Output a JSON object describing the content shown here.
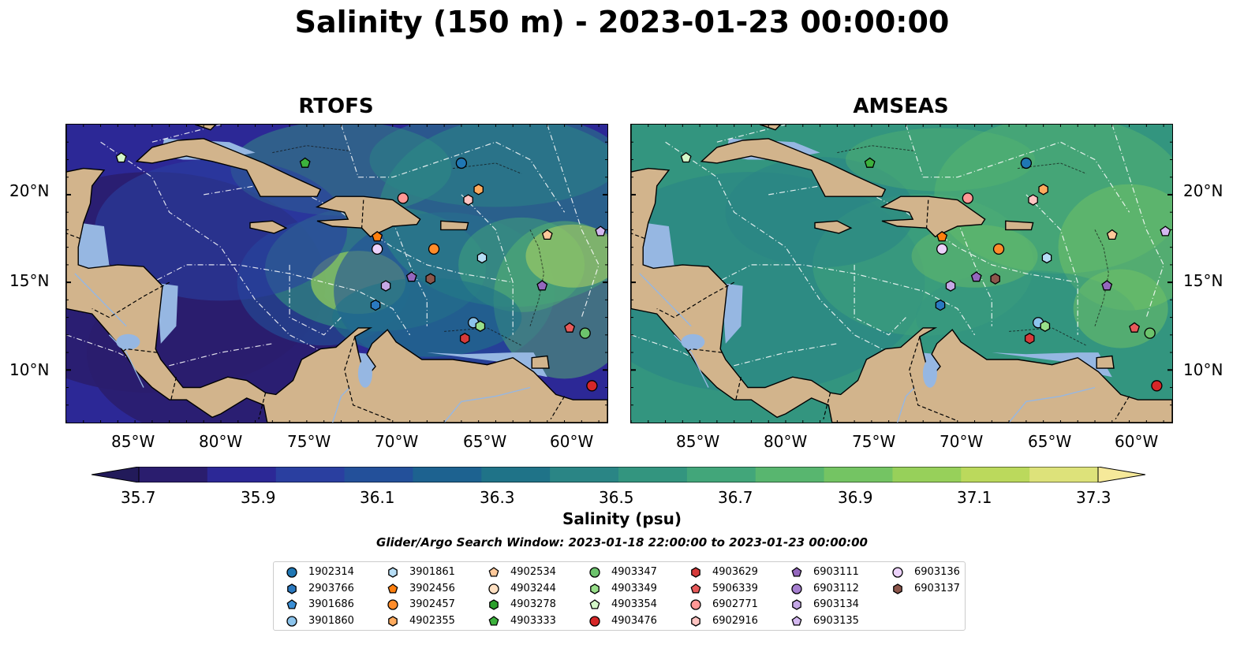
{
  "title": "Salinity (150 m) - 2023-01-23 00:00:00",
  "panels": [
    {
      "title": "RTOFS",
      "ocean_base": "#3b2f8a"
    },
    {
      "title": "AMSEAS",
      "ocean_base": "#3e9b82"
    }
  ],
  "lat_labels": [
    "20°N",
    "15°N",
    "10°N"
  ],
  "lon_labels": [
    "85°W",
    "80°W",
    "75°W",
    "70°W",
    "65°W",
    "60°W"
  ],
  "colorbar": {
    "ticks": [
      "35.7",
      "35.9",
      "36.1",
      "36.3",
      "36.5",
      "36.7",
      "36.9",
      "37.1",
      "37.3"
    ],
    "label": "Salinity (psu)",
    "colors": [
      "#2a1d6e",
      "#2c2896",
      "#2a3fa0",
      "#23509a",
      "#1d6290",
      "#1f7388",
      "#2a8585",
      "#33957f",
      "#42a67a",
      "#58b66f",
      "#74c463",
      "#97d05a",
      "#bbd95c",
      "#dde27a"
    ]
  },
  "search_window": "Glider/Argo Search Window: 2023-01-18 22:00:00 to 2023-01-23 00:00:00",
  "legend": [
    {
      "id": "1902314",
      "shape": "circle",
      "color": "#1f77b4"
    },
    {
      "id": "2903766",
      "shape": "hexagon",
      "color": "#2a79c0"
    },
    {
      "id": "3901686",
      "shape": "pentagon",
      "color": "#3a8fd6"
    },
    {
      "id": "3901860",
      "shape": "circle",
      "color": "#8cc4ec"
    },
    {
      "id": "3901861",
      "shape": "hexagon",
      "color": "#b6ddf5"
    },
    {
      "id": "3902456",
      "shape": "pentagon",
      "color": "#ff7f0e"
    },
    {
      "id": "3902457",
      "shape": "circle",
      "color": "#ff8c2a"
    },
    {
      "id": "4902355",
      "shape": "hexagon",
      "color": "#ffab5e"
    },
    {
      "id": "4902534",
      "shape": "pentagon",
      "color": "#ffc99a"
    },
    {
      "id": "4903244",
      "shape": "circle",
      "color": "#ffe0c2"
    },
    {
      "id": "4903278",
      "shape": "hexagon",
      "color": "#2ca02c"
    },
    {
      "id": "4903333",
      "shape": "pentagon",
      "color": "#3cb13c"
    },
    {
      "id": "4903347",
      "shape": "circle",
      "color": "#6cc36c"
    },
    {
      "id": "4903349",
      "shape": "hexagon",
      "color": "#98df8a"
    },
    {
      "id": "4903354",
      "shape": "pentagon",
      "color": "#d4f7c8"
    },
    {
      "id": "4903476",
      "shape": "circle",
      "color": "#d62728"
    },
    {
      "id": "4903629",
      "shape": "hexagon",
      "color": "#d63a3a"
    },
    {
      "id": "5906339",
      "shape": "pentagon",
      "color": "#e85a5a"
    },
    {
      "id": "6902771",
      "shape": "circle",
      "color": "#ff9896"
    },
    {
      "id": "6902916",
      "shape": "hexagon",
      "color": "#ffc4c2"
    },
    {
      "id": "6903111",
      "shape": "pentagon",
      "color": "#9467bd"
    },
    {
      "id": "6903112",
      "shape": "circle",
      "color": "#a67fd0"
    },
    {
      "id": "6903134",
      "shape": "hexagon",
      "color": "#c5a8e6"
    },
    {
      "id": "6903135",
      "shape": "pentagon",
      "color": "#d4b8f0"
    },
    {
      "id": "6903136",
      "shape": "circle",
      "color": "#ecd2fb"
    },
    {
      "id": "6903137",
      "shape": "hexagon",
      "color": "#8c564b"
    }
  ],
  "markers": [
    {
      "id": "1902314",
      "lon": -66.0,
      "lat": 21.8
    },
    {
      "id": "6902771",
      "lon": -69.4,
      "lat": 19.8
    },
    {
      "id": "4902355",
      "lon": -65.0,
      "lat": 20.3
    },
    {
      "id": "6902916",
      "lon": -65.6,
      "lat": 19.7
    },
    {
      "id": "4903333",
      "lon": -75.1,
      "lat": 21.8
    },
    {
      "id": "4903354",
      "lon": -85.8,
      "lat": 22.1
    },
    {
      "id": "3902456",
      "lon": -70.9,
      "lat": 17.6
    },
    {
      "id": "6903136",
      "lon": -70.9,
      "lat": 16.9
    },
    {
      "id": "3902457",
      "lon": -67.6,
      "lat": 16.9
    },
    {
      "id": "3901861",
      "lon": -64.8,
      "lat": 16.4
    },
    {
      "id": "4902534",
      "lon": -61.0,
      "lat": 17.7
    },
    {
      "id": "6903135",
      "lon": -57.9,
      "lat": 17.9
    },
    {
      "id": "6903137",
      "lon": -67.8,
      "lat": 15.2
    },
    {
      "id": "6903111",
      "lon": -68.9,
      "lat": 15.3
    },
    {
      "id": "6903134",
      "lon": -70.4,
      "lat": 14.8
    },
    {
      "id": "6903111",
      "lon": -61.3,
      "lat": 14.8
    },
    {
      "id": "2903766",
      "lon": -71.0,
      "lat": 13.7
    },
    {
      "id": "3901860",
      "lon": -65.3,
      "lat": 12.7
    },
    {
      "id": "4903349",
      "lon": -64.9,
      "lat": 12.5
    },
    {
      "id": "4903629",
      "lon": -65.8,
      "lat": 11.8
    },
    {
      "id": "5906339",
      "lon": -59.7,
      "lat": 12.4
    },
    {
      "id": "4903347",
      "lon": -58.8,
      "lat": 12.1
    },
    {
      "id": "4903476",
      "lon": -58.4,
      "lat": 9.1
    }
  ]
}
